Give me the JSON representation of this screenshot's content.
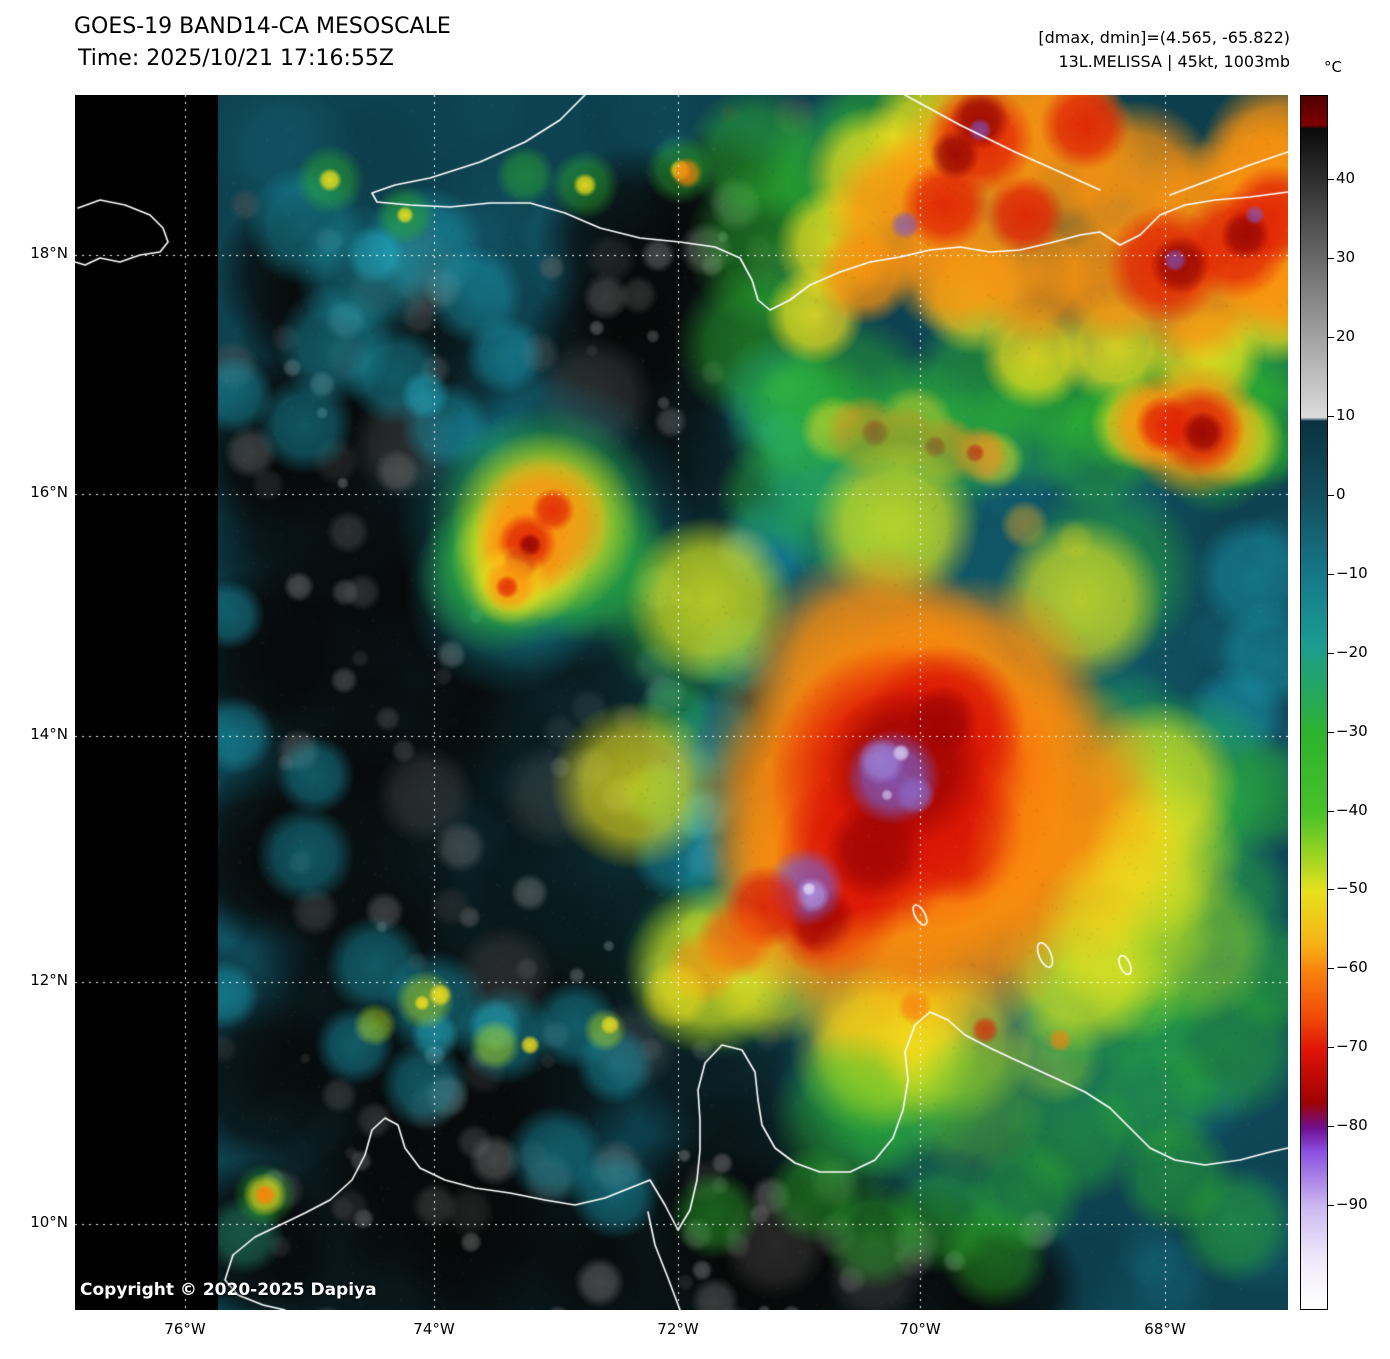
{
  "header": {
    "title": "GOES-19 BAND14-CA MESOSCALE",
    "time_line": "Time: 2025/10/21 17:16:55Z",
    "dmax_dmin": "[dmax, dmin]=(4.565, -65.822)",
    "storm_info": "13L.MELISSA | 45kt, 1003mb"
  },
  "colorbar": {
    "unit_label": "°C",
    "tick_values": [
      40,
      30,
      20,
      10,
      0,
      -10,
      -20,
      -30,
      -40,
      -50,
      -60,
      -70,
      -80,
      -90
    ],
    "value_max": 50.7,
    "value_min": -103.3,
    "gradient_stops": [
      [
        0.0,
        "#4f0000"
      ],
      [
        0.024,
        "#7e0000"
      ],
      [
        0.027,
        "#0a0a0a"
      ],
      [
        0.265,
        "#dcdcdc"
      ],
      [
        0.268,
        "#0b3240"
      ],
      [
        0.331,
        "#124f5e"
      ],
      [
        0.396,
        "#15798a"
      ],
      [
        0.45,
        "#1b9a93"
      ],
      [
        0.5,
        "#27aa54"
      ],
      [
        0.526,
        "#2db32d"
      ],
      [
        0.591,
        "#47c228"
      ],
      [
        0.63,
        "#a5d622"
      ],
      [
        0.656,
        "#e8e11c"
      ],
      [
        0.7,
        "#f6b115"
      ],
      [
        0.721,
        "#f9830e"
      ],
      [
        0.76,
        "#f04a08"
      ],
      [
        0.786,
        "#e01506"
      ],
      [
        0.83,
        "#9e0202"
      ],
      [
        0.851,
        "#6f0f8f"
      ],
      [
        0.87,
        "#8a4fe0"
      ],
      [
        0.916,
        "#cdb9f0"
      ],
      [
        0.96,
        "#efeafb"
      ],
      [
        1.0,
        "#ffffff"
      ]
    ]
  },
  "map": {
    "lat_labels": [
      "18°N",
      "16°N",
      "14°N",
      "12°N",
      "10°N"
    ],
    "lon_labels": [
      "76°W",
      "74°W",
      "72°W",
      "70°W",
      "68°W"
    ],
    "copyright": "Copyright © 2020-2025 Dapiya"
  }
}
